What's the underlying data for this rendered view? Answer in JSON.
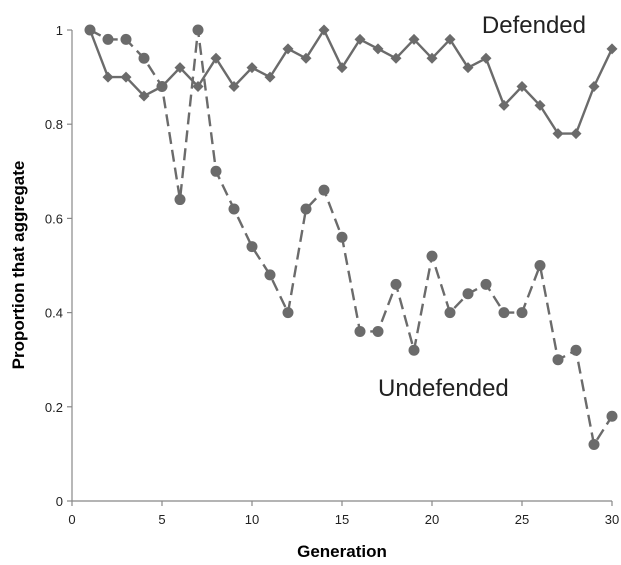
{
  "chart_data": {
    "type": "line",
    "title": "",
    "xlabel": "Generation",
    "ylabel": "Proportion that aggregate",
    "xlim": [
      0,
      30
    ],
    "ylim": [
      0,
      1
    ],
    "xticks": [
      0,
      5,
      10,
      15,
      20,
      25,
      30
    ],
    "yticks": [
      0,
      0.2,
      0.4,
      0.6,
      0.8,
      1
    ],
    "xtick_labels": [
      "0",
      "5",
      "10",
      "15",
      "20",
      "25",
      "30"
    ],
    "ytick_labels": [
      "0",
      "0.2",
      "0.4",
      "0.6",
      "0.8",
      "1"
    ],
    "grid": false,
    "legend": "none",
    "series": [
      {
        "name": "Defended",
        "marker": "diamond",
        "line_style": "solid",
        "color": "#6b6b6b",
        "x": [
          1,
          2,
          3,
          4,
          5,
          6,
          7,
          8,
          9,
          10,
          11,
          12,
          13,
          14,
          15,
          16,
          17,
          18,
          19,
          20,
          21,
          22,
          23,
          24,
          25,
          26,
          27,
          28,
          29,
          30
        ],
        "y": [
          1.0,
          0.9,
          0.9,
          0.86,
          0.88,
          0.92,
          0.88,
          0.94,
          0.88,
          0.92,
          0.9,
          0.96,
          0.94,
          1.0,
          0.92,
          0.98,
          0.96,
          0.94,
          0.98,
          0.94,
          0.98,
          0.92,
          0.94,
          0.84,
          0.88,
          0.84,
          0.78,
          0.78,
          0.88,
          0.96
        ]
      },
      {
        "name": "Undefended",
        "marker": "circle",
        "line_style": "dashed",
        "color": "#6b6b6b",
        "x": [
          1,
          2,
          3,
          4,
          5,
          6,
          7,
          8,
          9,
          10,
          11,
          12,
          13,
          14,
          15,
          16,
          17,
          18,
          19,
          20,
          21,
          22,
          23,
          24,
          25,
          26,
          27,
          28,
          29,
          30
        ],
        "y": [
          1.0,
          0.98,
          0.98,
          0.94,
          0.88,
          0.64,
          1.0,
          0.7,
          0.62,
          0.54,
          0.48,
          0.4,
          0.62,
          0.66,
          0.56,
          0.36,
          0.36,
          0.46,
          0.32,
          0.52,
          0.4,
          0.44,
          0.46,
          0.4,
          0.4,
          0.5,
          0.3,
          0.32,
          0.12,
          0.18
        ]
      }
    ]
  }
}
